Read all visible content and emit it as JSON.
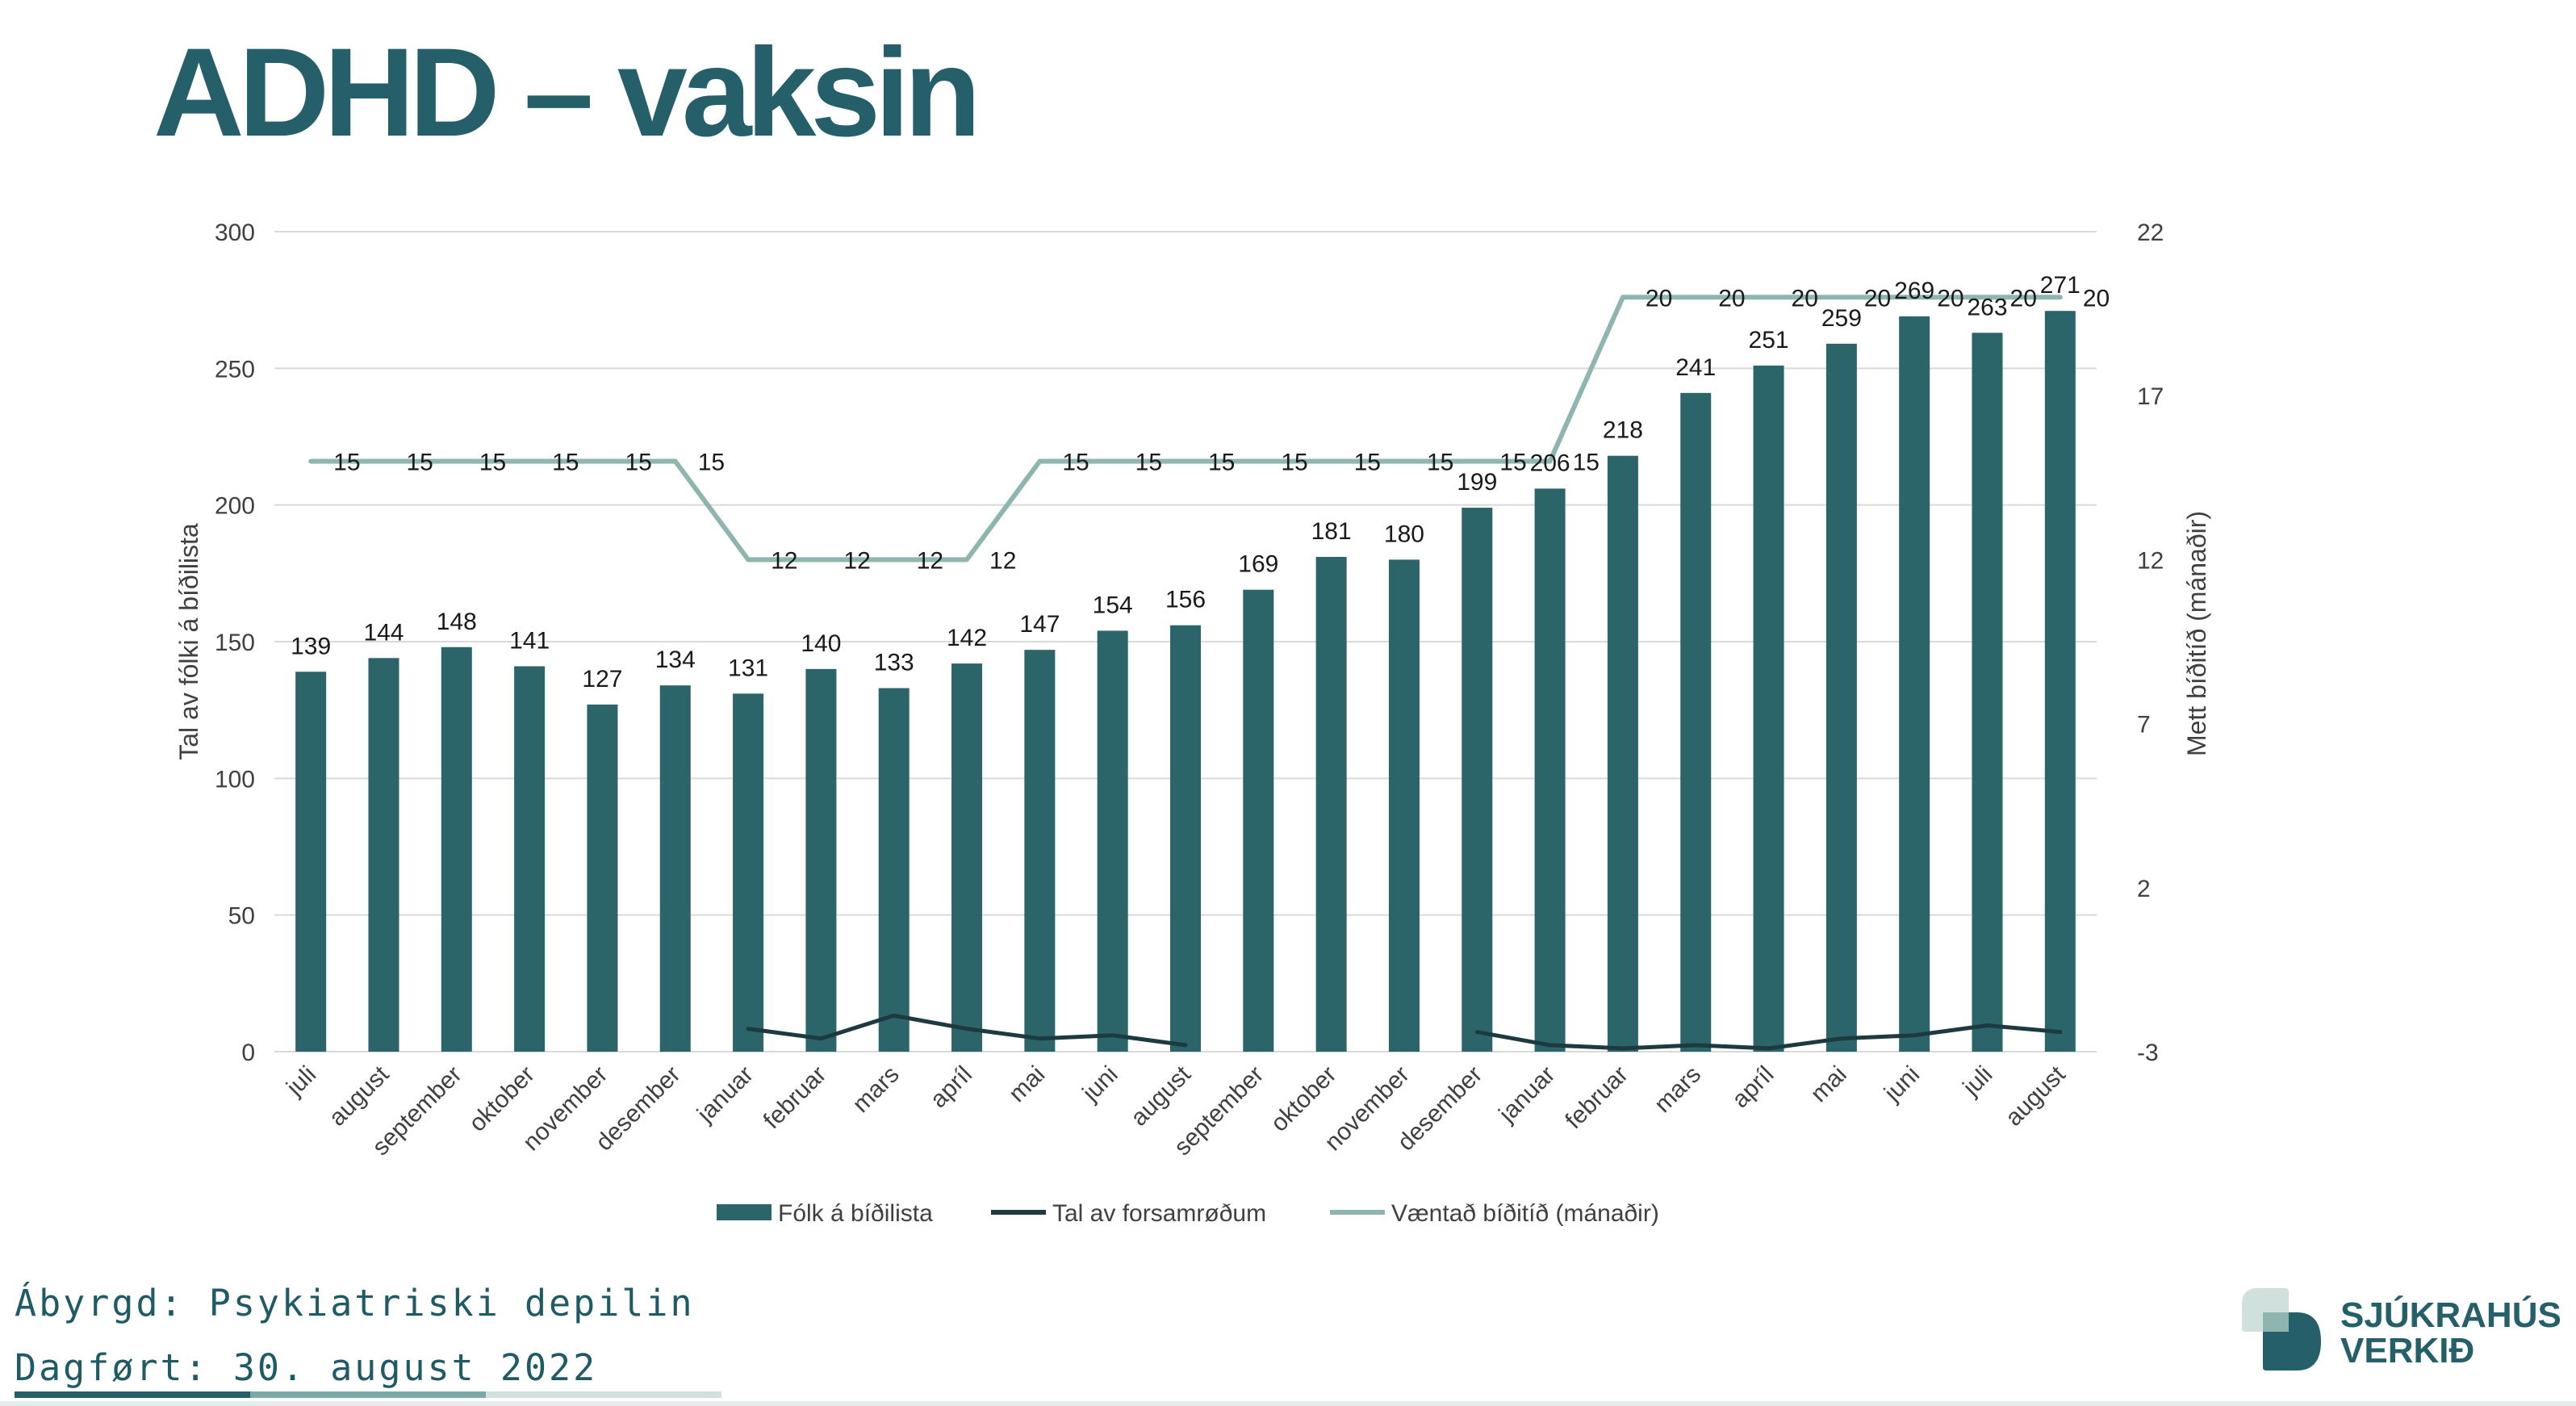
{
  "title": "ADHD – vaksin",
  "footer": {
    "responsible": "Ábyrgd: Psykiatriski depilin",
    "updated": "Dagført: 30. august 2022"
  },
  "logo": {
    "line1": "SJÚKRAHÚS",
    "line2": "VERKIÐ"
  },
  "colors": {
    "title": "#25606a",
    "bars": "#2b6569",
    "treatments_line": "#1c3a40",
    "expected_wait_line": "#8fb5b0",
    "gridline": "#d9d9d9"
  },
  "chart_data": {
    "type": "bar",
    "title": "",
    "categories": [
      "juli",
      "august",
      "september",
      "oktober",
      "november",
      "desember",
      "januar",
      "februar",
      "mars",
      "apríl",
      "mai",
      "juni",
      "august",
      "september",
      "oktober",
      "november",
      "desember",
      "januar",
      "februar",
      "mars",
      "apríl",
      "mai",
      "juni",
      "juli",
      "august"
    ],
    "ylabel": "Tal av fólki á bíðilista",
    "ylim": [
      0,
      300
    ],
    "yticks": [
      "0",
      "50",
      "100",
      "150",
      "200",
      "250",
      "300"
    ],
    "y2label": "Mett bíðitíð (mánaðir)",
    "y2lim": [
      -3,
      22
    ],
    "y2ticks": [
      "-3",
      "2",
      "7",
      "12",
      "17",
      "22"
    ],
    "grid": true,
    "legend_position": "bottom",
    "series": [
      {
        "name": "Fólk á bíðilista",
        "type": "bar",
        "axis": "left",
        "values": [
          139,
          144,
          148,
          141,
          127,
          134,
          131,
          140,
          133,
          142,
          147,
          154,
          156,
          169,
          181,
          180,
          199,
          206,
          218,
          241,
          251,
          259,
          269,
          263,
          271
        ],
        "labels": [
          "139",
          "144",
          "148",
          "141",
          "127",
          "134",
          "131",
          "140",
          "133",
          "142",
          "147",
          "154",
          "156",
          "169",
          "181",
          "180",
          "199",
          "206",
          "218",
          "241",
          "251",
          "259",
          "269",
          "263",
          "271"
        ]
      },
      {
        "name": "Tal av forsamrøðum",
        "type": "line",
        "axis": "right",
        "values": [
          null,
          null,
          null,
          null,
          null,
          null,
          -2.3,
          -2.6,
          -1.9,
          -2.3,
          -2.6,
          -2.5,
          -2.8,
          null,
          null,
          null,
          -2.4,
          -2.8,
          -2.9,
          -2.8,
          -2.9,
          -2.6,
          -2.5,
          -2.2,
          -2.4
        ]
      },
      {
        "name": "Væntað bíðitíð (mánaðir)",
        "type": "line",
        "axis": "right",
        "values": [
          15,
          15,
          15,
          15,
          15,
          15,
          12,
          12,
          12,
          12,
          15,
          15,
          15,
          15,
          15,
          15,
          15,
          15,
          20,
          20,
          20,
          20,
          20,
          20,
          20
        ],
        "labels": [
          "15",
          "15",
          "15",
          "15",
          "15",
          "15",
          "12",
          "12",
          "12",
          "12",
          "15",
          "15",
          "15",
          "15",
          "15",
          "15",
          "15",
          "15",
          "20",
          "20",
          "20",
          "20",
          "20",
          "20",
          "20"
        ]
      }
    ]
  }
}
